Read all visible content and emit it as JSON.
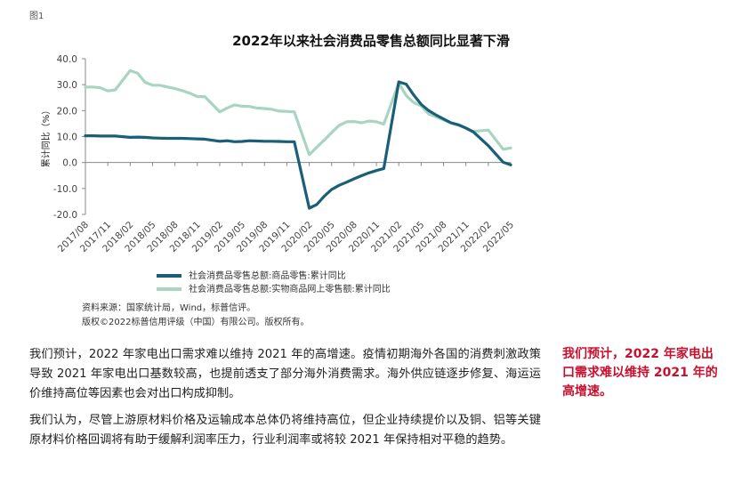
{
  "figure_label": "图1",
  "chart_data": {
    "type": "line",
    "title": "2022年以来社会消费品零售总额同比显著下滑",
    "ylabel": "累计同比（%）",
    "xlabel": "",
    "ylim": [
      -20,
      40
    ],
    "yticks": [
      "40.0",
      "30.0",
      "20.0",
      "10.0",
      "0.0",
      "-10.0",
      "-20.0"
    ],
    "x_ticks": [
      "2017/08",
      "2017/11",
      "2018/02",
      "2018/05",
      "2018/08",
      "2018/11",
      "2019/02",
      "2019/05",
      "2019/08",
      "2019/11",
      "2020/02",
      "2020/05",
      "2020/08",
      "2020/11",
      "2021/02",
      "2021/05",
      "2021/08",
      "2021/11",
      "2022/02",
      "2022/05"
    ],
    "x": [
      "2017/08",
      "2017/09",
      "2017/10",
      "2017/11",
      "2017/12",
      "2018/01",
      "2018/02",
      "2018/03",
      "2018/04",
      "2018/05",
      "2018/06",
      "2018/07",
      "2018/08",
      "2018/09",
      "2018/10",
      "2018/11",
      "2018/12",
      "2019/01",
      "2019/02",
      "2019/03",
      "2019/04",
      "2019/05",
      "2019/06",
      "2019/07",
      "2019/08",
      "2019/09",
      "2019/10",
      "2019/11",
      "2019/12",
      "2020/01",
      "2020/02",
      "2020/03",
      "2020/04",
      "2020/05",
      "2020/06",
      "2020/07",
      "2020/08",
      "2020/09",
      "2020/10",
      "2020/11",
      "2020/12",
      "2021/01",
      "2021/02",
      "2021/03",
      "2021/04",
      "2021/05",
      "2021/06",
      "2021/07",
      "2021/08",
      "2021/09",
      "2021/10",
      "2021/11",
      "2021/12",
      "2022/01",
      "2022/02",
      "2022/03",
      "2022/04",
      "2022/05"
    ],
    "series": [
      {
        "name": "社会消费品零售总额:商品零售:累计同比",
        "color": "#1a5e78",
        "values": [
          10.3,
          10.3,
          10.2,
          10.2,
          10.2,
          null,
          9.7,
          9.8,
          9.7,
          9.5,
          9.4,
          9.3,
          9.3,
          9.3,
          9.2,
          9.1,
          9.0,
          null,
          8.2,
          8.4,
          8.0,
          8.1,
          8.4,
          8.3,
          8.2,
          8.2,
          8.1,
          8.0,
          8.0,
          null,
          -17.6,
          -16.2,
          -13.0,
          -10.4,
          -8.8,
          -7.6,
          -6.3,
          -5.1,
          -4.0,
          -3.1,
          -2.3,
          null,
          31.1,
          30.2,
          26.0,
          22.4,
          20.0,
          18.3,
          16.8,
          15.3,
          14.5,
          13.3,
          11.8,
          null,
          6.5,
          3.3,
          0.1,
          -0.9
        ]
      },
      {
        "name": "社会消费品零售总额:实物商品网上零售额:累计同比",
        "color": "#a8d5c2",
        "values": [
          29.1,
          29.1,
          28.8,
          27.6,
          28.0,
          null,
          35.4,
          34.4,
          30.9,
          29.8,
          29.8,
          29.1,
          28.5,
          27.7,
          26.7,
          25.4,
          25.4,
          null,
          19.5,
          21.0,
          22.2,
          21.7,
          21.6,
          21.0,
          20.8,
          20.5,
          19.8,
          19.7,
          19.5,
          null,
          3.0,
          5.9,
          8.6,
          11.5,
          14.3,
          15.7,
          15.8,
          15.3,
          16.0,
          15.7,
          14.8,
          null,
          30.6,
          25.8,
          23.1,
          21.8,
          18.7,
          17.6,
          16.4,
          15.2,
          14.6,
          13.2,
          12.0,
          null,
          12.5,
          8.8,
          5.1,
          5.6
        ]
      }
    ],
    "legend_position": "bottom-left",
    "grid": false
  },
  "source_lines": [
    "资料来源：国家统计局，Wind，标普信评。",
    "版权©2022标普信用评级（中国）有限公司。版权所有。"
  ],
  "paragraphs": [
    "我们预计，2022 年家电出口需求难以维持 2021 年的高增速。疫情初期海外各国的消费刺激政策导致 2021 年家电出口基数较高，也提前透支了部分海外消费需求。海外供应链逐步修复、海运运价维持高位等因素也会对出口构成抑制。",
    "我们认为，尽管上游原材料价格及运输成本总体仍将维持高位，但企业持续提价以及铜、铝等关键原材料价格回调将有助于缓解利润率压力，行业利润率或将较 2021 年保持相对平稳的趋势。"
  ],
  "pull_quote": "我们预计，2022 年家电出口需求难以维持 2021 年的高增速。"
}
